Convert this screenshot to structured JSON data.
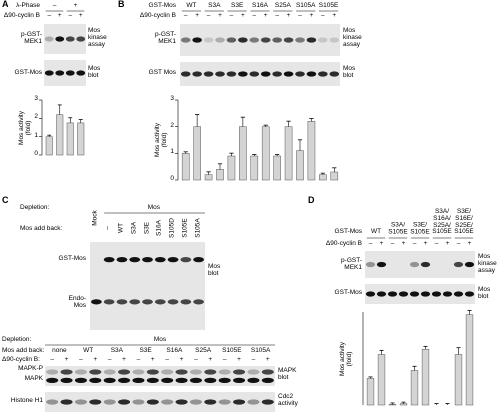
{
  "figure": {
    "A": {
      "label": "A",
      "phase_label": "λ-Phase",
      "phase": [
        "–",
        "+"
      ],
      "cyclin_label": "Δ90-cyclin B",
      "cyclin": [
        "–",
        "+",
        "–",
        "+"
      ],
      "blot1_left": "p-GST-\nMEK1",
      "blot1_right": "Mos\nkinase\nassay",
      "blot2_left": "GST-Mos",
      "blot2_right": "Mos\nblot"
    },
    "B": {
      "label": "B",
      "group_label": "GST-Mos",
      "groups": [
        "WT",
        "S3A",
        "S3E",
        "S16A",
        "S25A",
        "S105A",
        "S105E"
      ],
      "cyclin_label": "Δ90-cyclin B",
      "cyclin": [
        "–",
        "+",
        "–",
        "+",
        "–",
        "+",
        "–",
        "+",
        "–",
        "+",
        "–",
        "+",
        "–",
        "+"
      ],
      "blot1_left": "p-GST-\nMEK1",
      "blot1_right": "Mos\nkinase\nassay",
      "blot2_left": "GST Mos",
      "blot2_right": "Mos\nblot"
    },
    "C": {
      "label": "C",
      "top": {
        "depletion_label": "Depletion:",
        "depletion": [
          "Mock",
          "Mos"
        ],
        "addback_label": "Mos add back:",
        "addback": [
          "–",
          "WT",
          "S3A",
          "S3E",
          "S16A",
          "S105D",
          "S105E",
          "S105A"
        ],
        "band1": "GST-Mos",
        "band2": "Endo-\nMos",
        "right": "Mos\nblot"
      },
      "bottom": {
        "depletion_label": "Depletion:",
        "depletion": "Mos",
        "addback_label": "Mos add back:",
        "addback": [
          "none",
          "WT",
          "S3A",
          "S3E",
          "S16A",
          "S25A",
          "S105E",
          "S105A"
        ],
        "cyclin_label": "Δ90-cyclin B:",
        "cyclin": [
          "–",
          "+",
          "–",
          "+",
          "–",
          "+",
          "–",
          "+",
          "–",
          "+",
          "–",
          "+",
          "–",
          "+",
          "–",
          "+"
        ],
        "band1": "MAPK-P",
        "band2": "MAPK",
        "blot1_right": "MAPK\nblot",
        "blot2_left": "Histone H1",
        "blot2_right": "Cdc2\nactivity"
      }
    },
    "D": {
      "label": "D",
      "group_label": "GST-Mos",
      "groups": [
        "WT",
        "S3A/\nS105E",
        "S3E/\nS105E",
        "S3A/\nS16A/\nS25A/\nS105E",
        "S3E/\nS16E/\nS25E/\nS105E"
      ],
      "cyclin_label": "Δ90-cyclin B",
      "cyclin": [
        "–",
        "+",
        "–",
        "+",
        "–",
        "+",
        "–",
        "+",
        "–",
        "+"
      ],
      "blot1_left": "p-GST-\nMEK1",
      "blot1_right": "Mos\nkinase\nassay",
      "blot2_left": "GST-Mos",
      "blot2_right": "Mos\nblot"
    }
  },
  "chart_data": [
    {
      "type": "bar",
      "y_label": "Mos activity\n(fold)",
      "ylim": [
        0,
        3
      ],
      "yticks": [
        0,
        1,
        2,
        3
      ],
      "values": [
        1,
        2.2,
        1.75,
        1.75
      ],
      "errors": [
        0,
        0.45,
        0.2,
        0.1
      ],
      "color": "#d4d4d4"
    },
    {
      "type": "bar",
      "y_label": "Mos activity\n(fold)",
      "ylim": [
        0,
        3
      ],
      "yticks": [
        0,
        1,
        2,
        3
      ],
      "values": [
        1,
        2,
        0.2,
        0.4,
        0.9,
        2,
        0.9,
        2,
        0.9,
        2,
        1.1,
        2.2,
        0.2,
        0.3
      ],
      "errors": [
        0,
        0.4,
        0.05,
        0.15,
        0.05,
        0.3,
        0,
        0,
        0,
        0.15,
        0.35,
        0.05,
        0,
        0.1
      ],
      "color": "#d4d4d4"
    },
    {
      "type": "bar",
      "y_label": "Mos activity\n(fold)",
      "ylim": [
        0,
        3.5
      ],
      "values": [
        1,
        1.9,
        0.02,
        0.05,
        1.3,
        2.1,
        0,
        0,
        1.9,
        3.4
      ],
      "errors": [
        0,
        0.1,
        0,
        0,
        0.1,
        0.05,
        0,
        0,
        0.2,
        0.1
      ],
      "color": "#d4d4d4"
    }
  ]
}
